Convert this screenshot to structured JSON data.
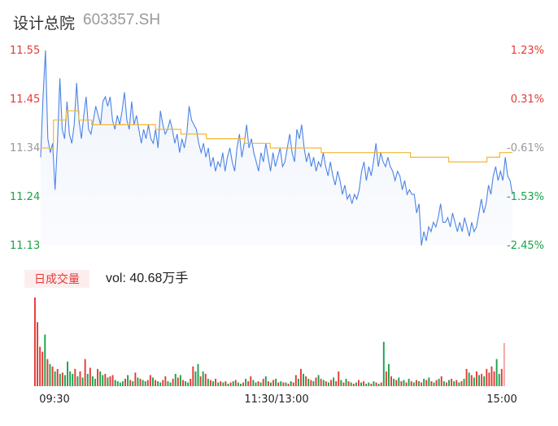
{
  "header": {
    "name": "设计总院",
    "code": "603357.SH"
  },
  "volume": {
    "tag": "日成交量",
    "value_text": "vol: 40.68万手"
  },
  "colors": {
    "price": "#4d84e6",
    "avg": "#f5b731",
    "up": "#e53935",
    "down": "#1aa34a",
    "neutral": "#999999"
  },
  "chart_data": [
    {
      "type": "line",
      "title": "",
      "y_left_ticks": [
        "11.55",
        "11.45",
        "11.34",
        "11.24",
        "11.13"
      ],
      "y_right_ticks": [
        "1.23%",
        "0.31%",
        "-0.61%",
        "-1.53%",
        "-2.45%"
      ],
      "ylim": [
        11.13,
        11.55
      ],
      "prev_close": 11.41,
      "x_ticks": [
        "09:30",
        "11:30/13:00",
        "15:00"
      ],
      "series": [
        {
          "values": [
            11.32,
            11.45,
            11.55,
            11.36,
            11.33,
            11.35,
            11.25,
            11.35,
            11.49,
            11.38,
            11.36,
            11.44,
            11.37,
            11.35,
            11.39,
            11.48,
            11.4,
            11.36,
            11.41,
            11.45,
            11.38,
            11.37,
            11.4,
            11.43,
            11.41,
            11.39,
            11.44,
            11.45,
            11.43,
            11.45,
            11.4,
            11.38,
            11.41,
            11.39,
            11.42,
            11.46,
            11.4,
            11.38,
            11.44,
            11.39,
            11.41,
            11.38,
            11.35,
            11.38,
            11.36,
            11.39,
            11.36,
            11.35,
            11.38,
            11.34,
            11.42,
            11.39,
            11.37,
            11.38,
            11.4,
            11.38,
            11.35,
            11.37,
            11.33,
            11.36,
            11.34,
            11.37,
            11.43,
            11.4,
            11.39,
            11.38,
            11.35,
            11.33,
            11.35,
            11.32,
            11.34,
            11.3,
            11.32,
            11.29,
            11.31,
            11.3,
            11.33,
            11.29,
            11.32,
            11.34,
            11.31,
            11.29,
            11.34,
            11.37,
            11.32,
            11.35,
            11.39,
            11.34,
            11.36,
            11.33,
            11.31,
            11.29,
            11.33,
            11.31,
            11.35,
            11.32,
            11.29,
            11.33,
            11.3,
            11.32,
            11.34,
            11.3,
            11.31,
            11.34,
            11.37,
            11.33,
            11.31,
            11.38,
            11.36,
            11.39,
            11.34,
            11.31,
            11.33,
            11.3,
            11.32,
            11.29,
            11.31,
            11.3,
            11.33,
            11.3,
            11.28,
            11.31,
            11.28,
            11.26,
            11.29,
            11.27,
            11.24,
            11.26,
            11.23,
            11.24,
            11.22,
            11.24,
            11.23,
            11.25,
            11.29,
            11.31,
            11.27,
            11.3,
            11.28,
            11.31,
            11.35,
            11.3,
            11.33,
            11.31,
            11.3,
            11.32,
            11.3,
            11.29,
            11.27,
            11.29,
            11.28,
            11.25,
            11.27,
            11.24,
            11.25,
            11.24,
            11.24,
            11.2,
            11.22,
            11.13,
            11.16,
            11.14,
            11.17,
            11.16,
            11.18,
            11.17,
            11.19,
            11.22,
            11.18,
            11.18,
            11.19,
            11.17,
            11.2,
            11.18,
            11.16,
            11.18,
            11.16,
            11.19,
            11.17,
            11.15,
            11.18,
            11.16,
            11.17,
            11.2,
            11.23,
            11.2,
            11.22,
            11.26,
            11.24,
            11.28,
            11.3,
            11.27,
            11.29,
            11.27,
            11.32,
            11.28,
            11.27,
            11.24
          ]
        },
        {
          "name": "",
          "values": [
            11.34,
            11.4,
            11.42,
            11.4,
            11.39,
            11.39,
            11.39,
            11.39,
            11.39,
            11.38,
            11.38,
            11.37,
            11.37,
            11.36,
            11.36,
            11.36,
            11.35,
            11.35,
            11.34,
            11.34,
            11.34,
            11.34,
            11.33,
            11.33,
            11.33,
            11.33,
            11.33,
            11.33,
            11.33,
            11.32,
            11.32,
            11.32,
            11.31,
            11.31,
            11.31,
            11.32,
            11.33
          ]
        }
      ],
      "volume_bars": [
        [
          72,
          "up"
        ],
        [
          52,
          "up"
        ],
        [
          32,
          "up"
        ],
        [
          28,
          "up"
        ],
        [
          42,
          "down"
        ],
        [
          22,
          "up"
        ],
        [
          18,
          "down"
        ],
        [
          16,
          "up"
        ],
        [
          12,
          "down"
        ],
        [
          14,
          "up"
        ],
        [
          10,
          "down"
        ],
        [
          11,
          "up"
        ],
        [
          9,
          "down"
        ],
        [
          20,
          "down"
        ],
        [
          12,
          "down"
        ],
        [
          10,
          "down"
        ],
        [
          14,
          "up"
        ],
        [
          8,
          "down"
        ],
        [
          12,
          "up"
        ],
        [
          7,
          "down"
        ],
        [
          22,
          "up"
        ],
        [
          10,
          "down"
        ],
        [
          15,
          "up"
        ],
        [
          8,
          "down"
        ],
        [
          6,
          "down"
        ],
        [
          14,
          "up"
        ],
        [
          12,
          "down"
        ],
        [
          9,
          "down"
        ],
        [
          10,
          "up"
        ],
        [
          7,
          "down"
        ],
        [
          8,
          "up"
        ],
        [
          9,
          "up"
        ],
        [
          5,
          "down"
        ],
        [
          4,
          "down"
        ],
        [
          3,
          "down"
        ],
        [
          4,
          "down"
        ],
        [
          6,
          "up"
        ],
        [
          9,
          "down"
        ],
        [
          5,
          "up"
        ],
        [
          4,
          "down"
        ],
        [
          11,
          "up"
        ],
        [
          7,
          "down"
        ],
        [
          6,
          "up"
        ],
        [
          5,
          "down"
        ],
        [
          4,
          "down"
        ],
        [
          5,
          "up"
        ],
        [
          9,
          "up"
        ],
        [
          7,
          "down"
        ],
        [
          5,
          "up"
        ],
        [
          4,
          "down"
        ],
        [
          3,
          "down"
        ],
        [
          5,
          "up"
        ],
        [
          8,
          "up"
        ],
        [
          4,
          "down"
        ],
        [
          3,
          "down"
        ],
        [
          6,
          "up"
        ],
        [
          10,
          "down"
        ],
        [
          7,
          "up"
        ],
        [
          9,
          "down"
        ],
        [
          5,
          "up"
        ],
        [
          4,
          "down"
        ],
        [
          3,
          "down"
        ],
        [
          6,
          "up"
        ],
        [
          16,
          "up"
        ],
        [
          12,
          "down"
        ],
        [
          18,
          "down"
        ],
        [
          8,
          "up"
        ],
        [
          12,
          "down"
        ],
        [
          10,
          "up"
        ],
        [
          6,
          "down"
        ],
        [
          5,
          "up"
        ],
        [
          4,
          "down"
        ],
        [
          6,
          "up"
        ],
        [
          3,
          "down"
        ],
        [
          4,
          "up"
        ],
        [
          3,
          "down"
        ],
        [
          4,
          "up"
        ],
        [
          2,
          "down"
        ],
        [
          3,
          "up"
        ],
        [
          4,
          "down"
        ],
        [
          5,
          "up"
        ],
        [
          3,
          "down"
        ],
        [
          2,
          "down"
        ],
        [
          3,
          "up"
        ],
        [
          6,
          "down"
        ],
        [
          4,
          "up"
        ],
        [
          8,
          "up"
        ],
        [
          5,
          "down"
        ],
        [
          3,
          "down"
        ],
        [
          4,
          "up"
        ],
        [
          3,
          "down"
        ],
        [
          6,
          "up"
        ],
        [
          8,
          "down"
        ],
        [
          4,
          "up"
        ],
        [
          3,
          "down"
        ],
        [
          5,
          "up"
        ],
        [
          6,
          "down"
        ],
        [
          3,
          "up"
        ],
        [
          4,
          "down"
        ],
        [
          3,
          "up"
        ],
        [
          3,
          "down"
        ],
        [
          2,
          "up"
        ],
        [
          4,
          "down"
        ],
        [
          3,
          "up"
        ],
        [
          9,
          "up"
        ],
        [
          6,
          "down"
        ],
        [
          14,
          "up"
        ],
        [
          10,
          "down"
        ],
        [
          8,
          "up"
        ],
        [
          6,
          "down"
        ],
        [
          5,
          "up"
        ],
        [
          4,
          "down"
        ],
        [
          7,
          "up"
        ],
        [
          9,
          "down"
        ],
        [
          6,
          "up"
        ],
        [
          5,
          "down"
        ],
        [
          4,
          "up"
        ],
        [
          3,
          "down"
        ],
        [
          5,
          "up"
        ],
        [
          7,
          "down"
        ],
        [
          4,
          "up"
        ],
        [
          12,
          "up"
        ],
        [
          5,
          "down"
        ],
        [
          3,
          "up"
        ],
        [
          6,
          "down"
        ],
        [
          4,
          "up"
        ],
        [
          3,
          "down"
        ],
        [
          2,
          "up"
        ],
        [
          3,
          "down"
        ],
        [
          5,
          "up"
        ],
        [
          3,
          "down"
        ],
        [
          4,
          "up"
        ],
        [
          2,
          "down"
        ],
        [
          3,
          "down"
        ],
        [
          2,
          "up"
        ],
        [
          4,
          "down"
        ],
        [
          3,
          "up"
        ],
        [
          2,
          "down"
        ],
        [
          3,
          "up"
        ],
        [
          36,
          "down"
        ],
        [
          12,
          "up"
        ],
        [
          18,
          "down"
        ],
        [
          8,
          "up"
        ],
        [
          6,
          "down"
        ],
        [
          5,
          "up"
        ],
        [
          7,
          "down"
        ],
        [
          4,
          "up"
        ],
        [
          5,
          "down"
        ],
        [
          3,
          "up"
        ],
        [
          6,
          "down"
        ],
        [
          4,
          "up"
        ],
        [
          3,
          "down"
        ],
        [
          5,
          "up"
        ],
        [
          4,
          "down"
        ],
        [
          3,
          "up"
        ],
        [
          6,
          "down"
        ],
        [
          5,
          "up"
        ],
        [
          7,
          "down"
        ],
        [
          4,
          "up"
        ],
        [
          3,
          "down"
        ],
        [
          5,
          "up"
        ],
        [
          6,
          "down"
        ],
        [
          8,
          "up"
        ],
        [
          4,
          "down"
        ],
        [
          3,
          "up"
        ],
        [
          5,
          "down"
        ],
        [
          6,
          "up"
        ],
        [
          4,
          "down"
        ],
        [
          5,
          "up"
        ],
        [
          3,
          "down"
        ],
        [
          4,
          "up"
        ],
        [
          6,
          "down"
        ],
        [
          14,
          "up"
        ],
        [
          11,
          "down"
        ],
        [
          9,
          "up"
        ],
        [
          7,
          "down"
        ],
        [
          12,
          "up"
        ],
        [
          9,
          "down"
        ],
        [
          10,
          "up"
        ],
        [
          8,
          "down"
        ],
        [
          14,
          "up"
        ],
        [
          11,
          "up"
        ],
        [
          16,
          "up"
        ],
        [
          12,
          "up"
        ],
        [
          22,
          "down"
        ],
        [
          10,
          "down"
        ],
        [
          14,
          "up"
        ],
        [
          35,
          "neutral"
        ]
      ]
    }
  ]
}
